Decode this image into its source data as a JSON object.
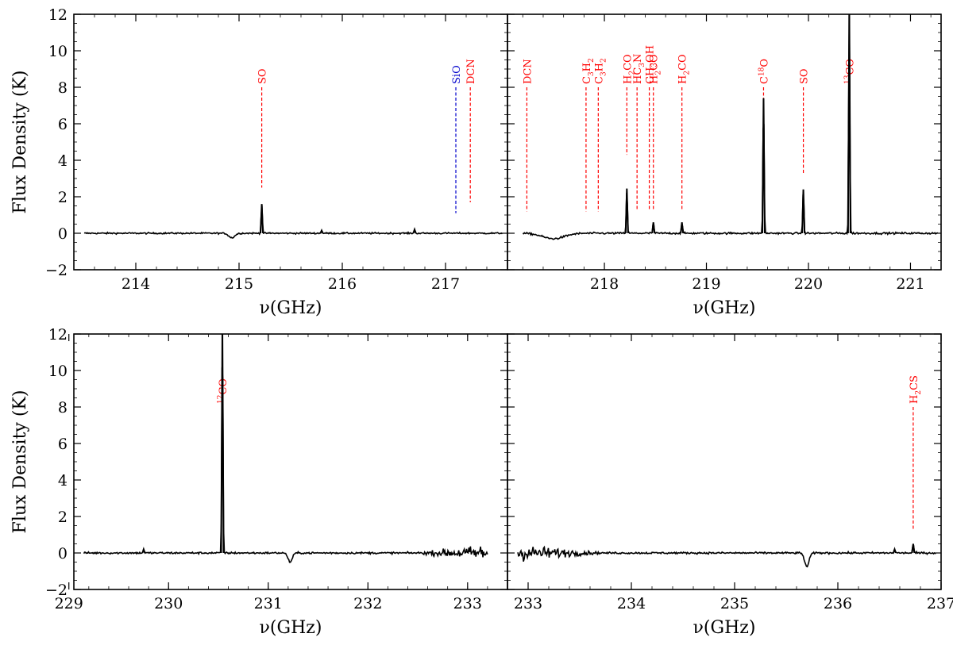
{
  "figure": {
    "ylabel": "Flux Density (K)",
    "xlabel": "ν(GHz)"
  },
  "colors": {
    "spectrum": "#000000",
    "line_red": "#ff0000",
    "line_blue": "#0000cc"
  },
  "chart_data": [
    {
      "type": "line",
      "panel": "top-left",
      "xlabel": "ν(GHz)",
      "ylabel": "Flux Density (K)",
      "xlim": [
        213.4,
        217.6
      ],
      "ylim": [
        -2,
        12
      ],
      "x_range_data": [
        213.5,
        217.55
      ],
      "x_ticks": [
        214,
        215,
        216,
        217
      ],
      "y_ticks": [
        -2,
        0,
        2,
        4,
        6,
        8,
        10,
        12
      ],
      "noise": 0.04,
      "peaks": [
        {
          "x": 215.22,
          "y": 1.6
        },
        {
          "x": 214.93,
          "y": -0.25,
          "width": 0.04
        },
        {
          "x": 215.8,
          "y": 0.15
        },
        {
          "x": 216.7,
          "y": 0.2
        }
      ],
      "lines": [
        {
          "label": "SO",
          "x": 215.22,
          "y_top": 8.0,
          "y_bottom": 2.5,
          "color": "#ff0000"
        },
        {
          "label": "SiO",
          "x": 217.1,
          "y_top": 8.0,
          "y_bottom": 1.1,
          "color": "#0000cc"
        },
        {
          "label": "DCN",
          "x": 217.24,
          "y_top": 8.0,
          "y_bottom": 1.7,
          "color": "#ff0000"
        }
      ]
    },
    {
      "type": "line",
      "panel": "top-right",
      "xlabel": "ν(GHz)",
      "ylabel": "",
      "xlim": [
        217.05,
        221.3
      ],
      "ylim": [
        -2,
        12
      ],
      "x_range_data": [
        217.2,
        221.27
      ],
      "x_ticks": [
        218,
        219,
        220,
        221
      ],
      "y_ticks": [
        -2,
        0,
        2,
        4,
        6,
        8,
        10,
        12
      ],
      "noise": 0.05,
      "peaks": [
        {
          "x": 218.22,
          "y": 2.45
        },
        {
          "x": 218.48,
          "y": 0.6
        },
        {
          "x": 218.76,
          "y": 0.6
        },
        {
          "x": 219.56,
          "y": 7.4
        },
        {
          "x": 219.95,
          "y": 2.4
        },
        {
          "x": 220.4,
          "y": 12.5
        },
        {
          "x": 217.5,
          "y": -0.3,
          "width": 0.15
        }
      ],
      "lines": [
        {
          "label": "DCN",
          "x": 217.24,
          "y_top": 8.0,
          "y_bottom": 1.2,
          "color": "#ff0000"
        },
        {
          "label": "C3H2",
          "x": 217.82,
          "y_top": 8.0,
          "y_bottom": 1.2,
          "color": "#ff0000"
        },
        {
          "label": "C3H2",
          "x": 217.94,
          "y_top": 8.0,
          "y_bottom": 1.2,
          "color": "#ff0000"
        },
        {
          "label": "H2CO",
          "x": 218.22,
          "y_top": 8.0,
          "y_bottom": 4.3,
          "color": "#ff0000"
        },
        {
          "label": "HC3N",
          "x": 218.32,
          "y_top": 8.0,
          "y_bottom": 1.3,
          "color": "#ff0000"
        },
        {
          "label": "CH3OH",
          "x": 218.44,
          "y_top": 8.0,
          "y_bottom": 1.3,
          "color": "#ff0000"
        },
        {
          "label": "H2CO",
          "x": 218.48,
          "y_top": 8.0,
          "y_bottom": 1.3,
          "color": "#ff0000"
        },
        {
          "label": "H2CO",
          "x": 218.76,
          "y_top": 8.0,
          "y_bottom": 1.3,
          "color": "#ff0000"
        },
        {
          "label": "C18O",
          "x": 219.56,
          "y_top": 8.0,
          "y_bottom": 7.4,
          "color": "#ff0000"
        },
        {
          "label": "SO",
          "x": 219.95,
          "y_top": 8.0,
          "y_bottom": 3.3,
          "color": "#ff0000"
        },
        {
          "label": "13CO",
          "x": 220.4,
          "y_top": 8.0,
          "y_bottom": 6.0,
          "color": "#ff0000"
        }
      ]
    },
    {
      "type": "line",
      "panel": "bottom-left",
      "xlabel": "ν(GHz)",
      "ylabel": "Flux Density (K)",
      "xlim": [
        229.05,
        233.4
      ],
      "ylim": [
        -2,
        12
      ],
      "x_range_data": [
        229.15,
        233.2
      ],
      "x_ticks": [
        229,
        230,
        231,
        232,
        233
      ],
      "y_ticks": [
        -2,
        0,
        2,
        4,
        6,
        8,
        10,
        12
      ],
      "noise": 0.05,
      "noise_growth": [
        [
          232.5,
          0.05
        ],
        [
          233.2,
          0.45
        ]
      ],
      "peaks": [
        {
          "x": 230.54,
          "y": 12.5
        },
        {
          "x": 229.75,
          "y": 0.2
        },
        {
          "x": 231.22,
          "y": -0.5,
          "width": 0.03
        }
      ],
      "lines": [
        {
          "label": "12CO",
          "x": 230.54,
          "y_top": 8.0,
          "y_bottom": 6.0,
          "color": "#ff0000"
        }
      ]
    },
    {
      "type": "line",
      "panel": "bottom-right",
      "xlabel": "ν(GHz)",
      "ylabel": "",
      "xlim": [
        232.8,
        237.0
      ],
      "ylim": [
        -2,
        12
      ],
      "x_range_data": [
        232.9,
        236.95
      ],
      "x_ticks": [
        233,
        234,
        235,
        236,
        237
      ],
      "y_ticks": [
        -2,
        0,
        2,
        4,
        6,
        8,
        10,
        12
      ],
      "noise": 0.05,
      "noise_decay": [
        [
          232.9,
          0.45
        ],
        [
          233.7,
          0.05
        ]
      ],
      "peaks": [
        {
          "x": 235.7,
          "y": -0.75,
          "width": 0.03
        },
        {
          "x": 236.73,
          "y": 0.5
        },
        {
          "x": 236.55,
          "y": 0.2
        }
      ],
      "lines": [
        {
          "label": "H2CS",
          "x": 236.73,
          "y_top": 8.0,
          "y_bottom": 1.3,
          "color": "#ff0000"
        }
      ]
    }
  ]
}
